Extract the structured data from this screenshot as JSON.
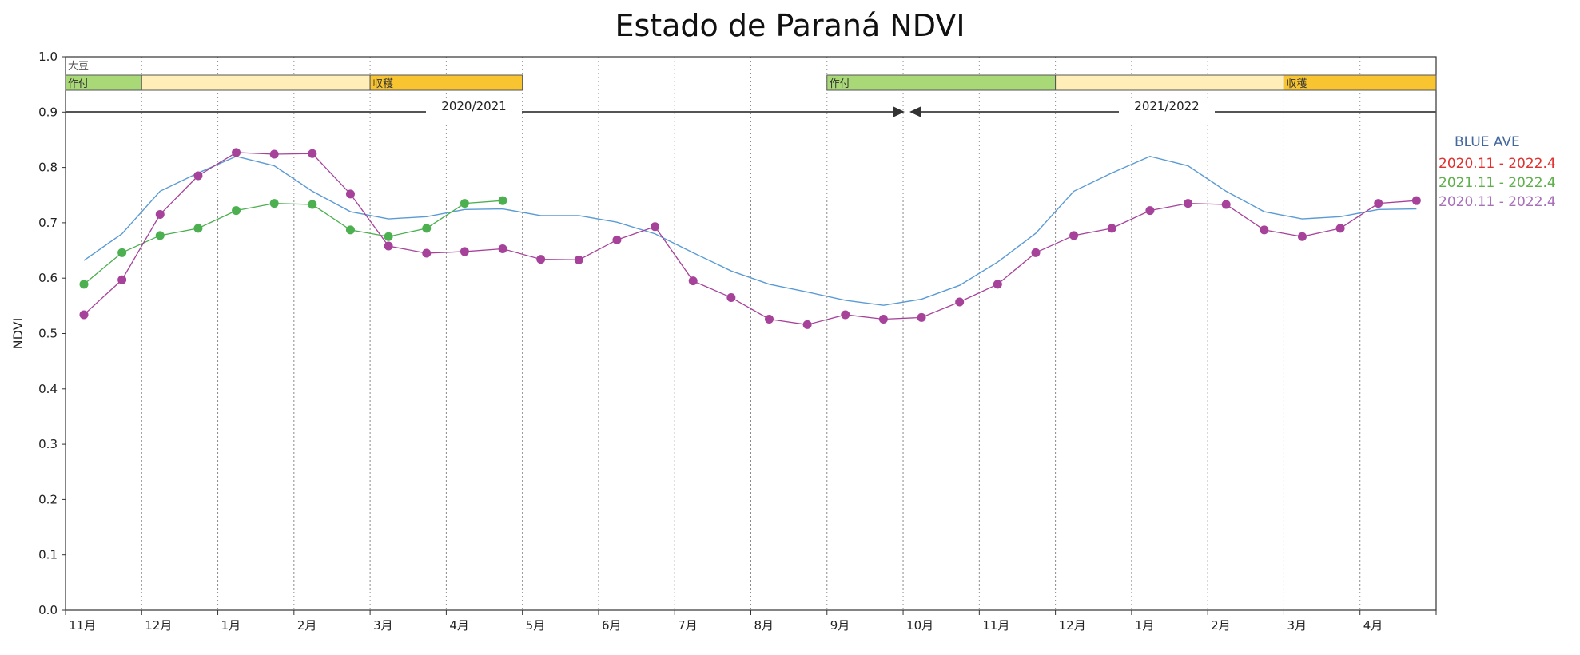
{
  "chart_data": {
    "type": "line",
    "title": "Estado de Paraná NDVI",
    "ylabel": "NDVI",
    "xlabel": "",
    "ylim": [
      0.0,
      1.0
    ],
    "yticks": [
      "0.0",
      "0.1",
      "0.2",
      "0.3",
      "0.4",
      "0.5",
      "0.6",
      "0.7",
      "0.8",
      "0.9",
      "1.0"
    ],
    "xticks": [
      "11月",
      "12月",
      "1月",
      "2月",
      "3月",
      "4月",
      "5月",
      "6月",
      "7月",
      "8月",
      "9月",
      "10月",
      "11月",
      "12月",
      "1月",
      "2月",
      "3月",
      "4月"
    ],
    "grid": "vertical dotted at month boundaries",
    "crop_label": "大豆",
    "seasons": [
      {
        "label": "2020/2021"
      },
      {
        "label": "2021/2022"
      }
    ],
    "phases": [
      {
        "label": "作付",
        "color": "#a9d977",
        "start": 0,
        "end": 1
      },
      {
        "label": "",
        "color": "#ffeeb8",
        "start": 1,
        "end": 4
      },
      {
        "label": "収穫",
        "color": "#f8c531",
        "start": 4,
        "end": 6
      },
      {
        "label": "作付",
        "color": "#a9d977",
        "start": 10,
        "end": 13
      },
      {
        "label": "",
        "color": "#ffeeb8",
        "start": 13,
        "end": 16
      },
      {
        "label": "収穫",
        "color": "#f8c531",
        "start": 16,
        "end": 18
      }
    ],
    "legend_placement": "right",
    "series": [
      {
        "name": "BLUE AVE",
        "color": "#5b9bd5",
        "markers": false,
        "values": [
          0.632,
          0.68,
          0.757,
          0.79,
          0.82,
          0.803,
          0.757,
          0.72,
          0.707,
          0.711,
          0.724,
          0.725,
          0.713,
          0.713,
          0.701,
          0.68,
          0.646,
          0.613,
          0.589,
          0.575,
          0.56,
          0.551,
          0.562,
          0.587,
          0.629,
          0.681,
          0.757,
          0.79,
          0.82,
          0.803,
          0.757,
          0.72,
          0.707,
          0.711,
          0.724,
          0.725
        ]
      },
      {
        "name": "2021.11 - 2022.4",
        "color": "#4caf50",
        "markers": true,
        "values": [
          0.589,
          0.646,
          0.677,
          0.69,
          0.722,
          0.735,
          0.733,
          0.687,
          0.675,
          0.69,
          0.735,
          0.74
        ]
      },
      {
        "name": "2020.11 - 2022.4",
        "color": "#a6429a",
        "markers": true,
        "values": [
          0.534,
          0.597,
          0.715,
          0.785,
          0.827,
          0.824,
          0.825,
          0.752,
          0.658,
          0.645,
          0.648,
          0.653,
          0.634,
          0.633,
          0.669,
          0.693,
          0.595,
          0.565,
          0.526,
          0.516,
          0.534,
          0.526,
          0.529,
          0.557,
          0.589,
          0.646,
          0.677,
          0.69,
          0.722,
          0.735,
          0.733,
          0.687,
          0.675,
          0.69,
          0.735,
          0.74
        ]
      }
    ],
    "legend": [
      {
        "name": "BLUE AVE",
        "color": "#44689e"
      },
      {
        "name": "2020.11 - 2022.4",
        "color": "#e03030"
      },
      {
        "name": "2021.11 - 2022.4",
        "color": "#5db04a"
      },
      {
        "name": "2020.11 - 2022.4",
        "color": "#a870b8"
      }
    ]
  }
}
